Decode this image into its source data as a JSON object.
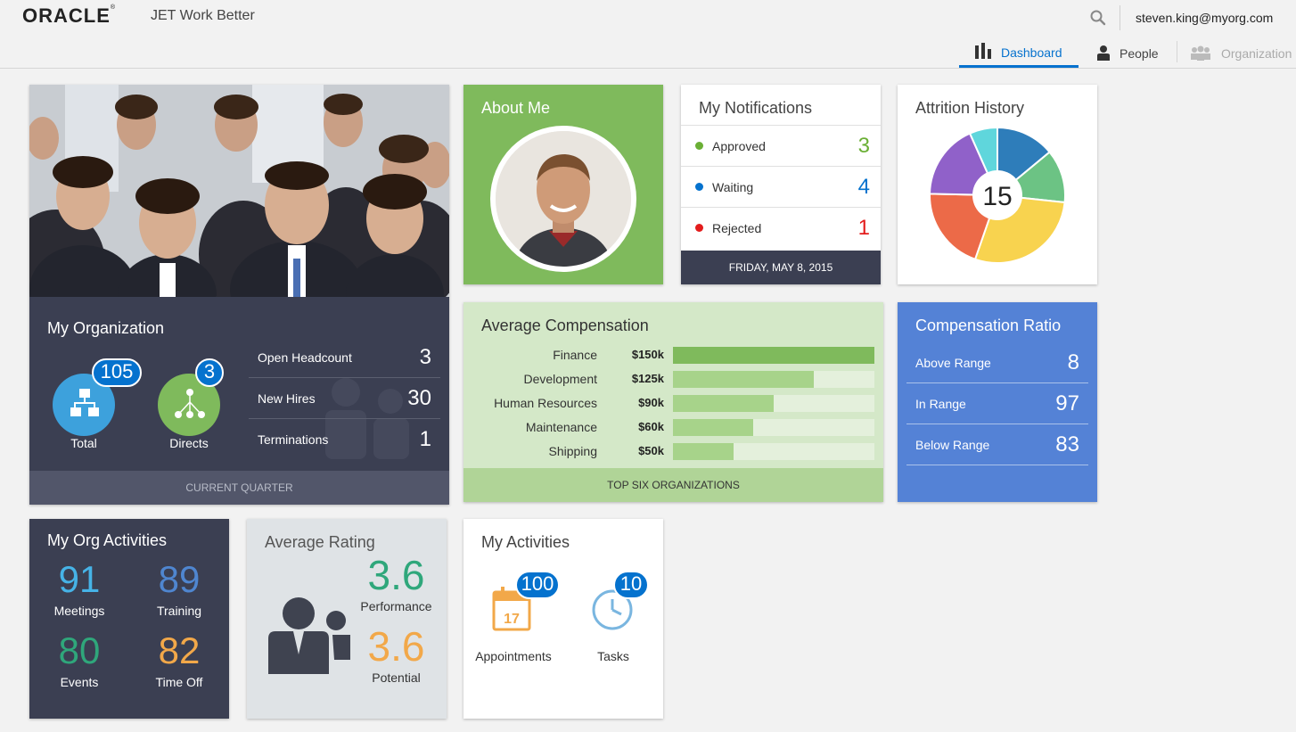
{
  "header": {
    "brand": "ORACLE",
    "app_name": "JET Work Better",
    "user_email": "steven.king@myorg.com",
    "tabs": [
      {
        "label": "Dashboard",
        "icon": "bar-chart-icon",
        "active": true
      },
      {
        "label": "People",
        "icon": "person-icon",
        "active": false
      },
      {
        "label": "Organization",
        "icon": "group-icon",
        "active": false,
        "disabled": true
      }
    ]
  },
  "my_organization": {
    "title": "My Organization",
    "total_label": "Total",
    "total_count": "105",
    "directs_label": "Directs",
    "directs_count": "3",
    "rows": [
      {
        "label": "Open Headcount",
        "value": "3"
      },
      {
        "label": "New Hires",
        "value": "30"
      },
      {
        "label": "Terminations",
        "value": "1"
      }
    ],
    "footer": "CURRENT QUARTER"
  },
  "about_me": {
    "title": "About Me"
  },
  "notifications": {
    "title": "My Notifications",
    "rows": [
      {
        "label": "Approved",
        "value": "3",
        "color": "#6aaf35"
      },
      {
        "label": "Waiting",
        "value": "4",
        "color": "#0572ce"
      },
      {
        "label": "Rejected",
        "value": "1",
        "color": "#e31c1c"
      }
    ],
    "footer": "FRIDAY, MAY 8, 2015"
  },
  "attrition": {
    "title": "Attrition History",
    "center_value": "15",
    "slices": [
      {
        "value": 2.1,
        "color": "#2e7dba"
      },
      {
        "value": 1.9,
        "color": "#6cc384"
      },
      {
        "value": 4.3,
        "color": "#f8d34f"
      },
      {
        "value": 3.0,
        "color": "#ec6a48"
      },
      {
        "value": 2.7,
        "color": "#9061c9"
      },
      {
        "value": 1.0,
        "color": "#5fd6dc"
      }
    ]
  },
  "avg_compensation": {
    "title": "Average Compensation",
    "footer": "TOP SIX ORGANIZATIONS",
    "rows": [
      {
        "category": "Finance",
        "value_label": "$150k",
        "fraction": 1.0
      },
      {
        "category": "Development",
        "value_label": "$125k",
        "fraction": 0.7
      },
      {
        "category": "Human Resources",
        "value_label": "$90k",
        "fraction": 0.5
      },
      {
        "category": "Maintenance",
        "value_label": "$60k",
        "fraction": 0.4
      },
      {
        "category": "Shipping",
        "value_label": "$50k",
        "fraction": 0.3
      }
    ],
    "colors": [
      "#7fba5c",
      "#a7d38a",
      "#a7d38a",
      "#a7d38a",
      "#a7d38a"
    ]
  },
  "comp_ratio": {
    "title": "Compensation Ratio",
    "rows": [
      {
        "label": "Above Range",
        "value": "8"
      },
      {
        "label": "In Range",
        "value": "97"
      },
      {
        "label": "Below Range",
        "value": "83"
      }
    ]
  },
  "org_activities": {
    "title": "My Org Activities",
    "stats": [
      {
        "value": "91",
        "label": "Meetings",
        "color": "#46b3e7"
      },
      {
        "value": "89",
        "label": "Training",
        "color": "#4f86d0"
      },
      {
        "value": "80",
        "label": "Events",
        "color": "#2fa77b"
      },
      {
        "value": "82",
        "label": "Time Off",
        "color": "#f2a849"
      }
    ]
  },
  "avg_rating": {
    "title": "Average Rating",
    "performance_value": "3.6",
    "performance_label": "Performance",
    "potential_value": "3.6",
    "potential_label": "Potential"
  },
  "my_activities": {
    "title": "My Activities",
    "appointments_label": "Appointments",
    "appointments_count": "100",
    "calendar_day": "17",
    "tasks_label": "Tasks",
    "tasks_count": "10"
  }
}
